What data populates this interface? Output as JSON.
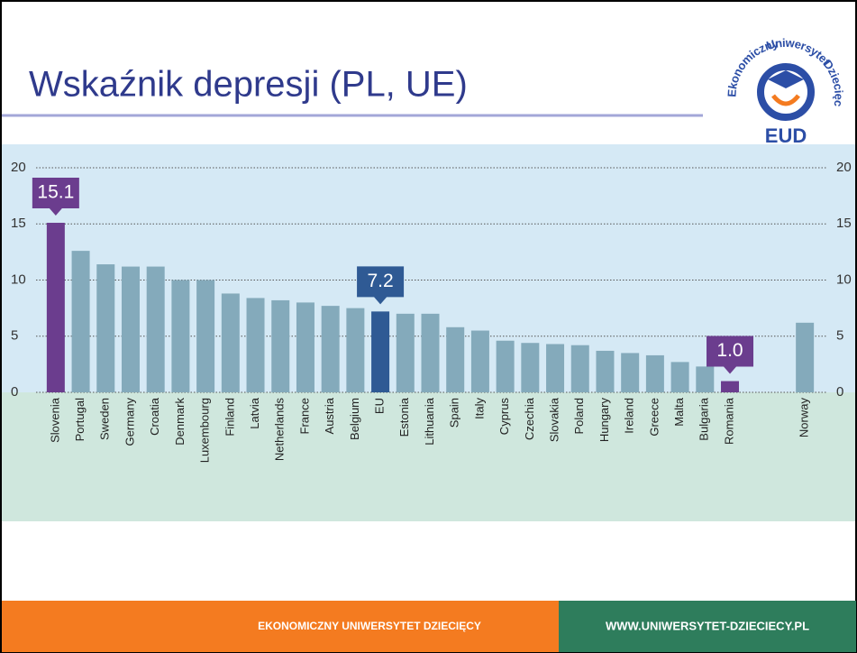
{
  "slide": {
    "title": "Wskaźnik depresji (PL, UE)",
    "logo": {
      "top": "Uniwersytet",
      "left": "Ekonomiczny",
      "right": "Dziecięcy",
      "mark": "EUD"
    },
    "footer_left": "EKONOMICZNY UNIWERSYTET DZIECIĘCY",
    "footer_right": "WWW.UNIWERSYTET-DZIECIECY.PL"
  },
  "chart_data": {
    "type": "bar",
    "categories": [
      "Slovenia",
      "Portugal",
      "Sweden",
      "Germany",
      "Croatia",
      "Denmark",
      "Luxembourg",
      "Finland",
      "Latvia",
      "Netherlands",
      "France",
      "Austria",
      "Belgium",
      "EU",
      "Estonia",
      "Lithuania",
      "Spain",
      "Italy",
      "Cyprus",
      "Czechia",
      "Slovakia",
      "Poland",
      "Hungary",
      "Ireland",
      "Greece",
      "Malta",
      "Bulgaria",
      "Romania",
      null,
      null,
      "Norway"
    ],
    "values": [
      15.1,
      12.6,
      11.4,
      11.2,
      11.2,
      10.0,
      10.0,
      8.8,
      8.4,
      8.2,
      8.0,
      7.7,
      7.5,
      7.2,
      7.0,
      7.0,
      5.8,
      5.5,
      4.6,
      4.4,
      4.3,
      4.2,
      3.7,
      3.5,
      3.3,
      2.7,
      2.3,
      1.0,
      null,
      null,
      6.2
    ],
    "value_labels": [
      "15.1",
      null,
      null,
      null,
      null,
      null,
      null,
      null,
      null,
      null,
      null,
      null,
      null,
      "7.2",
      null,
      null,
      null,
      null,
      null,
      null,
      null,
      null,
      null,
      null,
      null,
      null,
      null,
      "1.0",
      null,
      null,
      null
    ],
    "colors": [
      "#6b3d8e",
      "#84aabb",
      "#84aabb",
      "#84aabb",
      "#84aabb",
      "#84aabb",
      "#84aabb",
      "#84aabb",
      "#84aabb",
      "#84aabb",
      "#84aabb",
      "#84aabb",
      "#84aabb",
      "#2f5a94",
      "#84aabb",
      "#84aabb",
      "#84aabb",
      "#84aabb",
      "#84aabb",
      "#84aabb",
      "#84aabb",
      "#84aabb",
      "#84aabb",
      "#84aabb",
      "#84aabb",
      "#84aabb",
      "#84aabb",
      "#6b3d8e",
      null,
      null,
      "#84aabb"
    ],
    "ylim": [
      0,
      20
    ],
    "yticks": [
      0,
      5,
      10,
      15,
      20
    ],
    "grid": true
  }
}
